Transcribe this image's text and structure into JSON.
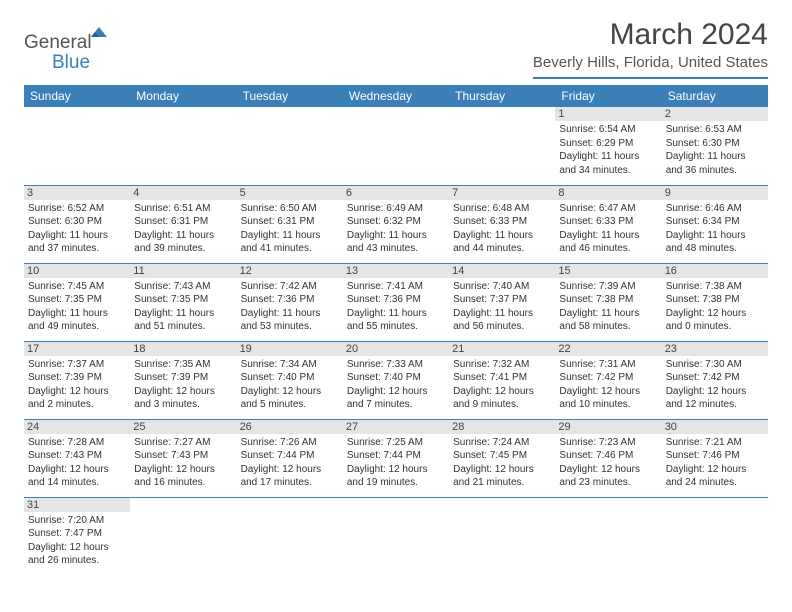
{
  "logo": {
    "word1": "General",
    "word2": "Blue"
  },
  "title": "March 2024",
  "location": "Beverly Hills, Florida, United States",
  "colors": {
    "accent": "#3b7fb8",
    "daybar": "#e5e5e5",
    "text": "#333333"
  },
  "weekdays": [
    "Sunday",
    "Monday",
    "Tuesday",
    "Wednesday",
    "Thursday",
    "Friday",
    "Saturday"
  ],
  "weeks": [
    [
      null,
      null,
      null,
      null,
      null,
      {
        "n": "1",
        "sr": "6:54 AM",
        "ss": "6:29 PM",
        "dl": "11 hours and 34 minutes."
      },
      {
        "n": "2",
        "sr": "6:53 AM",
        "ss": "6:30 PM",
        "dl": "11 hours and 36 minutes."
      }
    ],
    [
      {
        "n": "3",
        "sr": "6:52 AM",
        "ss": "6:30 PM",
        "dl": "11 hours and 37 minutes."
      },
      {
        "n": "4",
        "sr": "6:51 AM",
        "ss": "6:31 PM",
        "dl": "11 hours and 39 minutes."
      },
      {
        "n": "5",
        "sr": "6:50 AM",
        "ss": "6:31 PM",
        "dl": "11 hours and 41 minutes."
      },
      {
        "n": "6",
        "sr": "6:49 AM",
        "ss": "6:32 PM",
        "dl": "11 hours and 43 minutes."
      },
      {
        "n": "7",
        "sr": "6:48 AM",
        "ss": "6:33 PM",
        "dl": "11 hours and 44 minutes."
      },
      {
        "n": "8",
        "sr": "6:47 AM",
        "ss": "6:33 PM",
        "dl": "11 hours and 46 minutes."
      },
      {
        "n": "9",
        "sr": "6:46 AM",
        "ss": "6:34 PM",
        "dl": "11 hours and 48 minutes."
      }
    ],
    [
      {
        "n": "10",
        "sr": "7:45 AM",
        "ss": "7:35 PM",
        "dl": "11 hours and 49 minutes."
      },
      {
        "n": "11",
        "sr": "7:43 AM",
        "ss": "7:35 PM",
        "dl": "11 hours and 51 minutes."
      },
      {
        "n": "12",
        "sr": "7:42 AM",
        "ss": "7:36 PM",
        "dl": "11 hours and 53 minutes."
      },
      {
        "n": "13",
        "sr": "7:41 AM",
        "ss": "7:36 PM",
        "dl": "11 hours and 55 minutes."
      },
      {
        "n": "14",
        "sr": "7:40 AM",
        "ss": "7:37 PM",
        "dl": "11 hours and 56 minutes."
      },
      {
        "n": "15",
        "sr": "7:39 AM",
        "ss": "7:38 PM",
        "dl": "11 hours and 58 minutes."
      },
      {
        "n": "16",
        "sr": "7:38 AM",
        "ss": "7:38 PM",
        "dl": "12 hours and 0 minutes."
      }
    ],
    [
      {
        "n": "17",
        "sr": "7:37 AM",
        "ss": "7:39 PM",
        "dl": "12 hours and 2 minutes."
      },
      {
        "n": "18",
        "sr": "7:35 AM",
        "ss": "7:39 PM",
        "dl": "12 hours and 3 minutes."
      },
      {
        "n": "19",
        "sr": "7:34 AM",
        "ss": "7:40 PM",
        "dl": "12 hours and 5 minutes."
      },
      {
        "n": "20",
        "sr": "7:33 AM",
        "ss": "7:40 PM",
        "dl": "12 hours and 7 minutes."
      },
      {
        "n": "21",
        "sr": "7:32 AM",
        "ss": "7:41 PM",
        "dl": "12 hours and 9 minutes."
      },
      {
        "n": "22",
        "sr": "7:31 AM",
        "ss": "7:42 PM",
        "dl": "12 hours and 10 minutes."
      },
      {
        "n": "23",
        "sr": "7:30 AM",
        "ss": "7:42 PM",
        "dl": "12 hours and 12 minutes."
      }
    ],
    [
      {
        "n": "24",
        "sr": "7:28 AM",
        "ss": "7:43 PM",
        "dl": "12 hours and 14 minutes."
      },
      {
        "n": "25",
        "sr": "7:27 AM",
        "ss": "7:43 PM",
        "dl": "12 hours and 16 minutes."
      },
      {
        "n": "26",
        "sr": "7:26 AM",
        "ss": "7:44 PM",
        "dl": "12 hours and 17 minutes."
      },
      {
        "n": "27",
        "sr": "7:25 AM",
        "ss": "7:44 PM",
        "dl": "12 hours and 19 minutes."
      },
      {
        "n": "28",
        "sr": "7:24 AM",
        "ss": "7:45 PM",
        "dl": "12 hours and 21 minutes."
      },
      {
        "n": "29",
        "sr": "7:23 AM",
        "ss": "7:46 PM",
        "dl": "12 hours and 23 minutes."
      },
      {
        "n": "30",
        "sr": "7:21 AM",
        "ss": "7:46 PM",
        "dl": "12 hours and 24 minutes."
      }
    ],
    [
      {
        "n": "31",
        "sr": "7:20 AM",
        "ss": "7:47 PM",
        "dl": "12 hours and 26 minutes."
      },
      null,
      null,
      null,
      null,
      null,
      null
    ]
  ],
  "labels": {
    "sunrise": "Sunrise:",
    "sunset": "Sunset:",
    "daylight": "Daylight:"
  }
}
